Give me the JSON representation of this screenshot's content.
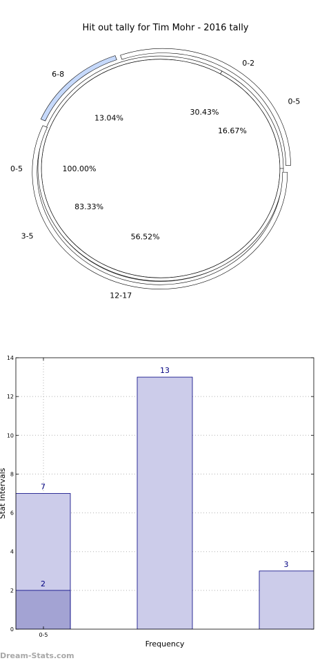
{
  "watermark": "Dream-Stats.com",
  "chart_data": [
    {
      "type": "pie",
      "title": "Hit out tally for Tim Mohr - 2016 tally",
      "rings": [
        {
          "slices": [
            {
              "label": "0-5",
              "value": 100.0,
              "percent_label": "100.00%",
              "color": "#ffffff"
            }
          ]
        },
        {
          "slices": [
            {
              "label": "0-5",
              "value": 16.67,
              "percent_label": "16.67%",
              "color": "#ffffff"
            },
            {
              "label": "3-5",
              "value": 83.33,
              "percent_label": "83.33%",
              "color": "#ffffff"
            }
          ]
        },
        {
          "slices": [
            {
              "label": "0-2",
              "value": 30.43,
              "percent_label": "30.43%",
              "color": "#ffffff"
            },
            {
              "label": "6-8",
              "value": 13.04,
              "percent_label": "13.04%",
              "color": "#c6d9fb"
            },
            {
              "label": "12-17",
              "value": 56.52,
              "percent_label": "56.52%",
              "color": "#ffffff"
            }
          ]
        }
      ]
    },
    {
      "type": "bar",
      "xlabel": "Frequency",
      "ylabel": "Stat Intervals",
      "ylim": [
        0,
        14
      ],
      "yticks": [
        0,
        2,
        4,
        6,
        8,
        10,
        12,
        14
      ],
      "x_tick_labels": [
        "0-5"
      ],
      "grid": true,
      "bars": [
        {
          "value": 7,
          "label": "7",
          "color": "#ccccea"
        },
        {
          "value": 2,
          "label": "2",
          "color": "#a3a3d3"
        },
        {
          "value": 13,
          "label": "13",
          "color": "#ccccea"
        },
        {
          "value": 3,
          "label": "3",
          "color": "#ccccea"
        }
      ]
    }
  ]
}
